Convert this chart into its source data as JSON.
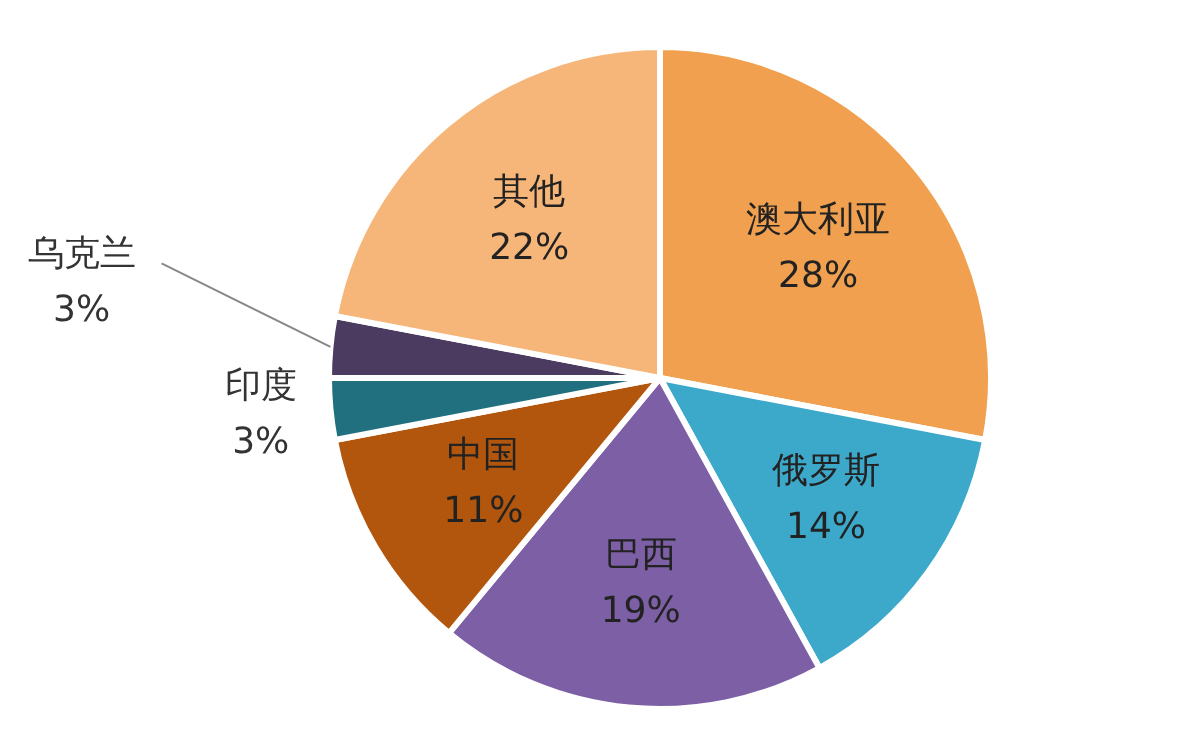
{
  "chart_data": {
    "type": "pie",
    "categories": [
      "澳大利亚",
      "俄罗斯",
      "巴西",
      "中国",
      "印度",
      "乌克兰",
      "其他"
    ],
    "values": [
      28,
      14,
      19,
      11,
      3,
      3,
      22
    ],
    "value_labels": [
      "28%",
      "14%",
      "19%",
      "11%",
      "3%",
      "3%",
      "22%"
    ],
    "colors": [
      "#f0a04e",
      "#3ca9cb",
      "#7d5fa6",
      "#b3560d",
      "#20707f",
      "#4b3b60",
      "#f6b679"
    ],
    "legend": false
  }
}
